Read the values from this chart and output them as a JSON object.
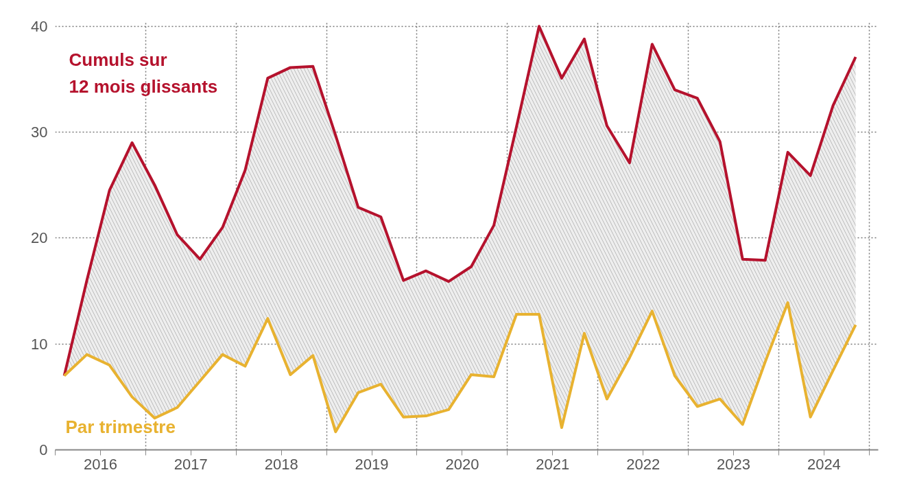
{
  "chart_data": {
    "type": "line",
    "x": [
      2016.1,
      2016.35,
      2016.6,
      2016.85,
      2017.1,
      2017.35,
      2017.6,
      2017.85,
      2018.1,
      2018.35,
      2018.6,
      2018.85,
      2019.1,
      2019.35,
      2019.6,
      2019.85,
      2020.1,
      2020.35,
      2020.6,
      2020.85,
      2021.1,
      2021.35,
      2021.6,
      2021.85,
      2022.1,
      2022.35,
      2022.6,
      2022.85,
      2023.1,
      2023.35,
      2023.6,
      2023.85,
      2024.1,
      2024.35,
      2024.6,
      2024.85
    ],
    "series": [
      {
        "name": "Cumuls sur\n12 mois glissants",
        "color": "#b5122d",
        "values": [
          7,
          16,
          24.5,
          29,
          25,
          20.3,
          18,
          21,
          26.4,
          35.1,
          36.1,
          36.2,
          29.7,
          22.9,
          22,
          16,
          16.9,
          15.9,
          17.3,
          21.2,
          30.5,
          40,
          35.1,
          38.8,
          30.6,
          27.1,
          38.3,
          34,
          33.2,
          29.1,
          18,
          17.9,
          28.1,
          25.9,
          32.5,
          37.1
        ],
        "lower": [
          7,
          9,
          8,
          5,
          3,
          4,
          6.5,
          9,
          7.9,
          12.4,
          7.1,
          8.9,
          1.7,
          5.4,
          6.2,
          3.1,
          3.2,
          3.8,
          7.1,
          6.9,
          12.8,
          12.8,
          2.1,
          11,
          4.8,
          8.7,
          13.1,
          7,
          4.1,
          4.8,
          2.4,
          8.3,
          13.9,
          3.1,
          7.5,
          11.8
        ],
        "upper": [
          7,
          16,
          24.5,
          29,
          25,
          20.3,
          18,
          21,
          26.4,
          35.1,
          36.1,
          36.2,
          29.7,
          22.9,
          22,
          16,
          16.9,
          15.9,
          17.3,
          21.2,
          30.5,
          40,
          35.1,
          38.8,
          30.6,
          27.1,
          38.3,
          34,
          33.2,
          29.1,
          18,
          17.9,
          28.1,
          25.9,
          32.5,
          37.1
        ]
      },
      {
        "name": "Par trimestre",
        "color": "#e8b230",
        "values": [
          7,
          9,
          8,
          5,
          3,
          4,
          6.5,
          9,
          7.9,
          12.4,
          7.1,
          8.9,
          1.7,
          5.4,
          6.2,
          3.1,
          3.2,
          3.8,
          7.1,
          6.9,
          12.8,
          12.8,
          2.1,
          11,
          4.8,
          8.7,
          13.1,
          7,
          4.1,
          4.8,
          2.4,
          8.3,
          13.9,
          3.1,
          7.5,
          11.8
        ]
      }
    ],
    "xlim": [
      2016,
      2025.1
    ],
    "xticks": [
      {
        "value": 2016,
        "label": null
      },
      {
        "value": 2016.5,
        "label": "2016"
      },
      {
        "value": 2017,
        "label": null
      },
      {
        "value": 2017.5,
        "label": "2017"
      },
      {
        "value": 2018,
        "label": null
      },
      {
        "value": 2018.5,
        "label": "2018"
      },
      {
        "value": 2019,
        "label": null
      },
      {
        "value": 2019.5,
        "label": "2019"
      },
      {
        "value": 2020,
        "label": null
      },
      {
        "value": 2020.5,
        "label": "2020"
      },
      {
        "value": 2021,
        "label": null
      },
      {
        "value": 2021.5,
        "label": "2021"
      },
      {
        "value": 2022,
        "label": null
      },
      {
        "value": 2022.5,
        "label": "2022"
      },
      {
        "value": 2023,
        "label": null
      },
      {
        "value": 2023.5,
        "label": "2023"
      },
      {
        "value": 2024,
        "label": null
      },
      {
        "value": 2024.5,
        "label": "2024"
      },
      {
        "value": 2025,
        "label": null
      }
    ],
    "ylim": [
      0,
      40.5
    ],
    "yticks": [
      0,
      10,
      20,
      30,
      40
    ],
    "grid": true,
    "legend": false,
    "line_style": "solid",
    "marker": "none"
  }
}
